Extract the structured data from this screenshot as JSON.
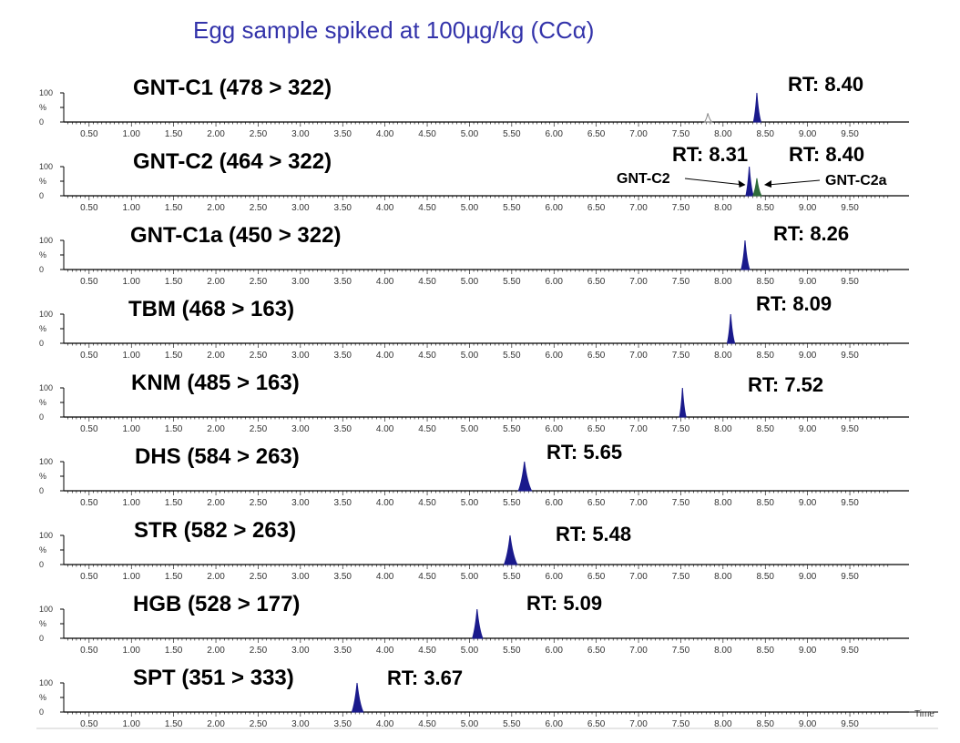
{
  "figure": {
    "title": "Egg sample spiked at 100µg/kg (CCα)",
    "x_axis_label": "Time"
  },
  "colors": {
    "peak_fill": "#1a1a8c",
    "secondary_peak_fill": "#2e6b3a",
    "axis": "#000000",
    "title": "#3333aa"
  },
  "chart_data": {
    "type": "line",
    "xlim": [
      0.2,
      10.2
    ],
    "ylim": [
      0,
      100
    ],
    "x_ticks": [
      "0.50",
      "1.00",
      "1.50",
      "2.00",
      "2.50",
      "3.00",
      "3.50",
      "4.00",
      "4.50",
      "5.00",
      "5.50",
      "6.00",
      "6.50",
      "7.00",
      "7.50",
      "8.00",
      "8.50",
      "9.00",
      "9.50"
    ],
    "y_ticks": [
      "100",
      "%",
      "0"
    ],
    "panels": [
      {
        "title": "GNT-C1 (478 > 322)",
        "rt_labels": [
          "RT: 8.40"
        ],
        "peaks": [
          {
            "rt": 8.4,
            "height": 100,
            "width": 0.04,
            "fill": "primary"
          },
          {
            "rt": 7.82,
            "height": 30,
            "width": 0.04,
            "fill": "none"
          }
        ]
      },
      {
        "title": "GNT-C2 (464 > 322)",
        "rt_labels": [
          "RT: 8.31",
          "RT: 8.40"
        ],
        "annotations": [
          {
            "text": "GNT-C2",
            "target_rt": 8.31
          },
          {
            "text": "GNT-C2a",
            "target_rt": 8.4
          }
        ],
        "peaks": [
          {
            "rt": 8.31,
            "height": 100,
            "width": 0.04,
            "fill": "primary"
          },
          {
            "rt": 8.4,
            "height": 60,
            "width": 0.045,
            "fill": "secondary"
          }
        ]
      },
      {
        "title": "GNT-C1a (450 > 322)",
        "rt_labels": [
          "RT: 8.26"
        ],
        "peaks": [
          {
            "rt": 8.26,
            "height": 100,
            "width": 0.045,
            "fill": "primary"
          }
        ]
      },
      {
        "title": "TBM (468 > 163)",
        "rt_labels": [
          "RT: 8.09"
        ],
        "peaks": [
          {
            "rt": 8.09,
            "height": 100,
            "width": 0.04,
            "fill": "primary"
          }
        ]
      },
      {
        "title": "KNM (485 > 163)",
        "rt_labels": [
          "RT: 7.52"
        ],
        "peaks": [
          {
            "rt": 7.52,
            "height": 100,
            "width": 0.035,
            "fill": "primary"
          }
        ]
      },
      {
        "title": "DHS (584 > 263)",
        "rt_labels": [
          "RT: 5.65"
        ],
        "peaks": [
          {
            "rt": 5.65,
            "height": 100,
            "width": 0.07,
            "fill": "primary"
          }
        ]
      },
      {
        "title": "STR (582 > 263)",
        "rt_labels": [
          "RT: 5.48"
        ],
        "peaks": [
          {
            "rt": 5.48,
            "height": 100,
            "width": 0.07,
            "fill": "primary"
          }
        ]
      },
      {
        "title": "HGB (528 > 177)",
        "rt_labels": [
          "RT: 5.09"
        ],
        "peaks": [
          {
            "rt": 5.09,
            "height": 100,
            "width": 0.055,
            "fill": "primary"
          }
        ]
      },
      {
        "title": "SPT (351 > 333)",
        "rt_labels": [
          "RT: 3.67"
        ],
        "peaks": [
          {
            "rt": 3.67,
            "height": 100,
            "width": 0.06,
            "fill": "primary"
          }
        ]
      }
    ]
  }
}
